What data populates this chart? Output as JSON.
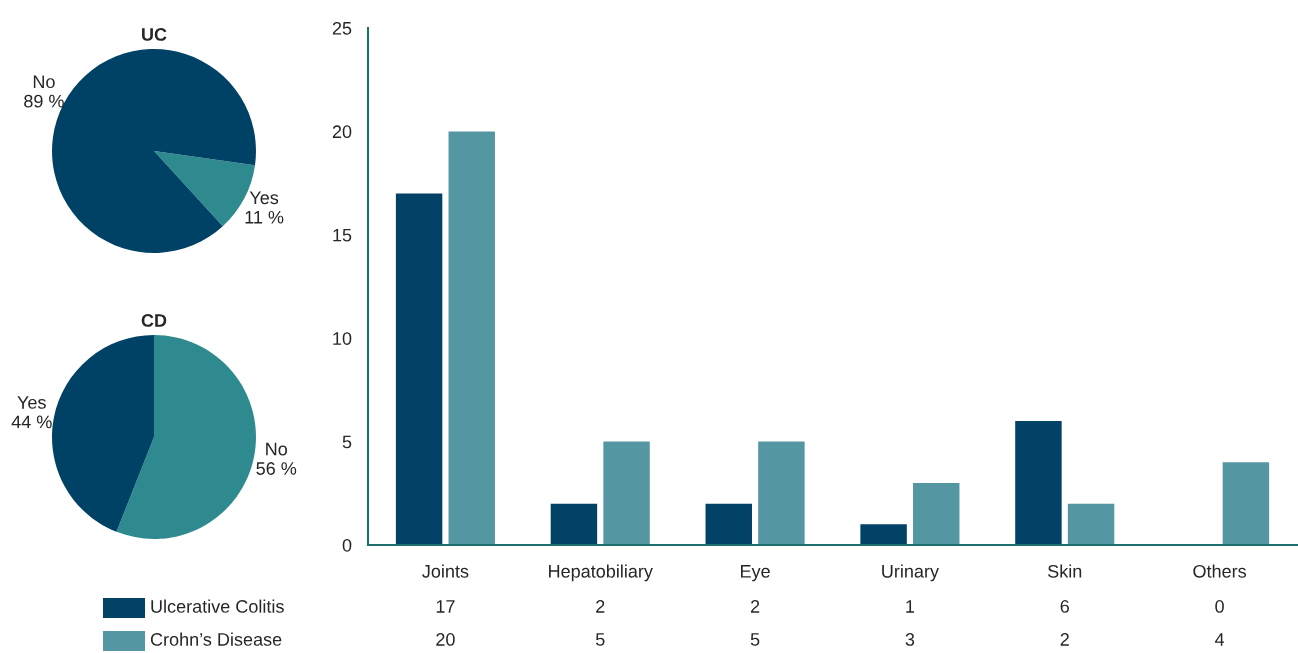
{
  "chart_data": [
    {
      "type": "pie",
      "title": "UC",
      "categories": [
        "Yes",
        "No"
      ],
      "values": [
        11,
        89
      ],
      "value_labels": [
        "11 %",
        "89 %"
      ],
      "colors": [
        "#2e8a8e",
        "#004266"
      ]
    },
    {
      "type": "pie",
      "title": "CD",
      "categories": [
        "No",
        "Yes"
      ],
      "values": [
        56,
        44
      ],
      "value_labels": [
        "56 %",
        "44 %"
      ],
      "colors": [
        "#2e8a8e",
        "#004266"
      ]
    },
    {
      "type": "bar",
      "categories": [
        "Joints",
        "Hepatobiliary",
        "Eye",
        "Urinary",
        "Skin",
        "Others"
      ],
      "series": [
        {
          "name": "Ulcerative Colitis",
          "color": "#024266",
          "values": [
            17,
            2,
            2,
            1,
            6,
            0
          ]
        },
        {
          "name": "Crohn’s Disease",
          "color": "#5497a3",
          "values": [
            20,
            5,
            5,
            3,
            2,
            4
          ]
        }
      ],
      "ylim": [
        0,
        25
      ],
      "yticks": [
        0,
        5,
        10,
        15,
        20,
        25
      ],
      "data_labels": true,
      "legend": "bottom left",
      "grid": false
    }
  ]
}
